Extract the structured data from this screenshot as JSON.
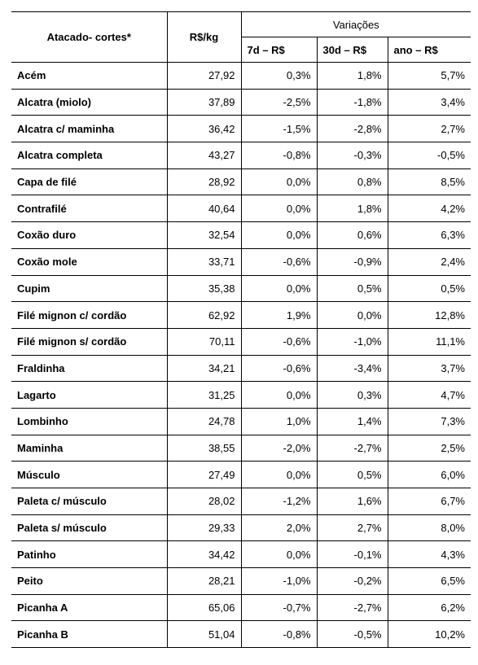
{
  "table": {
    "header": {
      "cut": "Atacado- cortes*",
      "price": "R$/kg",
      "group": "Variações",
      "sub": [
        "7d – R$",
        "30d – R$",
        "ano – R$"
      ]
    },
    "rows": [
      [
        "Acém",
        "27,92",
        "0,3%",
        "1,8%",
        "5,7%"
      ],
      [
        "Alcatra (miolo)",
        "37,89",
        "-2,5%",
        "-1,8%",
        "3,4%"
      ],
      [
        "Alcatra c/ maminha",
        "36,42",
        "-1,5%",
        "-2,8%",
        "2,7%"
      ],
      [
        "Alcatra completa",
        "43,27",
        "-0,8%",
        "-0,3%",
        "-0,5%"
      ],
      [
        "Capa de filé",
        "28,92",
        "0,0%",
        "0,8%",
        "8,5%"
      ],
      [
        "Contrafilé",
        "40,64",
        "0,0%",
        "1,8%",
        "4,2%"
      ],
      [
        "Coxão duro",
        "32,54",
        "0,0%",
        "0,6%",
        "6,3%"
      ],
      [
        "Coxão mole",
        "33,71",
        "-0,6%",
        "-0,9%",
        "2,4%"
      ],
      [
        "Cupim",
        "35,38",
        "0,0%",
        "0,5%",
        "0,5%"
      ],
      [
        "Filé mignon c/ cordão",
        "62,92",
        "1,9%",
        "0,0%",
        "12,8%"
      ],
      [
        "Filé mignon s/ cordão",
        "70,11",
        "-0,6%",
        "-1,0%",
        "11,1%"
      ],
      [
        "Fraldinha",
        "34,21",
        "-0,6%",
        "-3,4%",
        "3,7%"
      ],
      [
        "Lagarto",
        "31,25",
        "0,0%",
        "0,3%",
        "4,7%"
      ],
      [
        "Lombinho",
        "24,78",
        "1,0%",
        "1,4%",
        "7,3%"
      ],
      [
        "Maminha",
        "38,55",
        "-2,0%",
        "-2,7%",
        "2,5%"
      ],
      [
        "Músculo",
        "27,49",
        "0,0%",
        "0,5%",
        "6,0%"
      ],
      [
        "Paleta c/ músculo",
        "28,02",
        "-1,2%",
        "1,6%",
        "6,7%"
      ],
      [
        "Paleta s/ músculo",
        "29,33",
        "2,0%",
        "2,7%",
        "8,0%"
      ],
      [
        "Patinho",
        "34,42",
        "0,0%",
        "-0,1%",
        "4,3%"
      ],
      [
        "Peito",
        "28,21",
        "-1,0%",
        "-0,2%",
        "6,5%"
      ],
      [
        "Picanha A",
        "65,06",
        "-0,7%",
        "-2,7%",
        "6,2%"
      ],
      [
        "Picanha B",
        "51,04",
        "-0,8%",
        "-0,5%",
        "10,2%"
      ]
    ]
  }
}
